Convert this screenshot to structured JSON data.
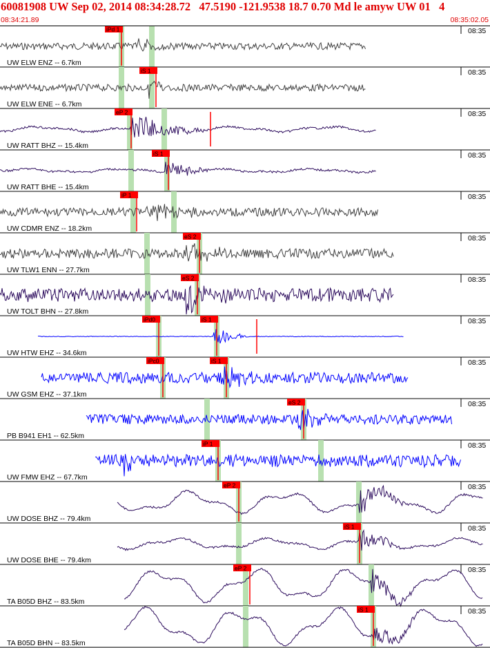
{
  "header": {
    "title": "60081908 UW Sep 02, 2014 08:34:28.72   47.5190 -121.9538 18.7 0.70 Md le amyw UW 01   4",
    "start_time": "08:34:21.89",
    "end_time": "08:35:02.05"
  },
  "colors": {
    "title_red": "#e00000",
    "pick_red": "#ff0000",
    "pick_green": "#b8e0b0",
    "trace_dark": "#404040",
    "trace_purple": "#2b0a5c",
    "trace_blue": "#0000ff"
  },
  "tick_label": "08:35",
  "traces": [
    {
      "label": "UW ELW ENZ -- 6.7km",
      "color": "trace_dark",
      "picks": [
        {
          "label": "iPd 1",
          "kind": "P"
        }
      ]
    },
    {
      "label": "UW ELW ENE -- 6.7km",
      "color": "trace_dark",
      "picks": [
        {
          "label": "iS 1",
          "kind": "S"
        }
      ]
    },
    {
      "label": "UW RATT BHZ -- 15.4km",
      "color": "trace_purple",
      "picks": [
        {
          "label": "eP 2",
          "kind": "P"
        }
      ]
    },
    {
      "label": "UW RATT BHE -- 15.4km",
      "color": "trace_purple",
      "picks": [
        {
          "label": "iS 1",
          "kind": "S"
        }
      ]
    },
    {
      "label": "UW CDMR ENZ -- 18.2km",
      "color": "trace_dark",
      "picks": [
        {
          "label": "iP 1",
          "kind": "P"
        }
      ]
    },
    {
      "label": "UW TLW1 ENN -- 27.7km",
      "color": "trace_dark",
      "picks": [
        {
          "label": "eS 2",
          "kind": "S"
        }
      ]
    },
    {
      "label": "UW TOLT BHN -- 27.8km",
      "color": "trace_purple",
      "picks": [
        {
          "label": "eS 2",
          "kind": "S"
        }
      ]
    },
    {
      "label": "UW HTW EHZ -- 34.6km",
      "color": "trace_blue",
      "picks": [
        {
          "label": "iPd0",
          "kind": "P"
        },
        {
          "label": "iS 1",
          "kind": "S"
        }
      ]
    },
    {
      "label": "UW GSM EHZ -- 37.1km",
      "color": "trace_blue",
      "picks": [
        {
          "label": "iPc0",
          "kind": "P"
        },
        {
          "label": "iS 1",
          "kind": "S"
        }
      ]
    },
    {
      "label": "PB B941 EH1 -- 62.5km",
      "color": "trace_blue",
      "picks": [
        {
          "label": "eS 2",
          "kind": "S"
        }
      ]
    },
    {
      "label": "UW FMW EHZ -- 67.7km",
      "color": "trace_blue",
      "picks": [
        {
          "label": "iP 1",
          "kind": "P"
        }
      ]
    },
    {
      "label": "UW DOSE BHZ -- 79.4km",
      "color": "trace_purple",
      "picks": [
        {
          "label": "eP 2",
          "kind": "P"
        }
      ]
    },
    {
      "label": "UW DOSE BHE -- 79.4km",
      "color": "trace_purple",
      "picks": [
        {
          "label": "iS 1",
          "kind": "S"
        }
      ]
    },
    {
      "label": "TA B05D BHZ -- 83.5km",
      "color": "trace_purple",
      "picks": [
        {
          "label": "eP 2",
          "kind": "P"
        }
      ]
    },
    {
      "label": "TA B05D BHN -- 83.5km",
      "color": "trace_purple",
      "picks": [
        {
          "label": "iS 1",
          "kind": "S"
        }
      ]
    }
  ]
}
